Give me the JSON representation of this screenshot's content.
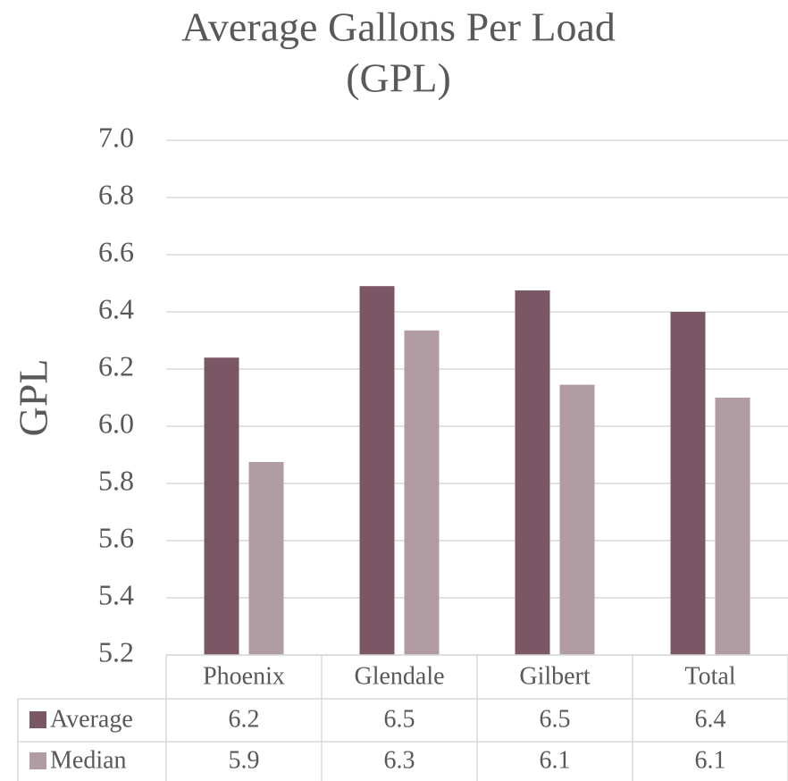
{
  "chart_data": {
    "type": "bar",
    "title": "Average Gallons Per Load (GPL)",
    "y_label": "GPL",
    "categories": [
      "Phoenix",
      "Glendale",
      "Gilbert",
      "Total"
    ],
    "series": [
      {
        "name": "Average",
        "color": "#7b5766",
        "values": [
          6.24,
          6.49,
          6.475,
          6.4
        ],
        "value_labels": [
          "6.2",
          "6.5",
          "6.5",
          "6.4"
        ]
      },
      {
        "name": "Median",
        "color": "#b09ca2",
        "values": [
          5.875,
          6.335,
          6.145,
          6.1
        ],
        "value_labels": [
          "5.9",
          "6.3",
          "6.1",
          "6.1"
        ]
      }
    ],
    "ylim": [
      5.2,
      7.0
    ],
    "yticks": [
      {
        "value": 5.2,
        "label": "5.2"
      },
      5.4,
      5.6,
      5.8,
      {
        "value": 6.0,
        "label": "6.0"
      },
      6.2,
      6.4,
      6.6,
      6.8,
      {
        "value": 7.0,
        "label": "7.0"
      }
    ],
    "grid": true,
    "data_table": true
  }
}
